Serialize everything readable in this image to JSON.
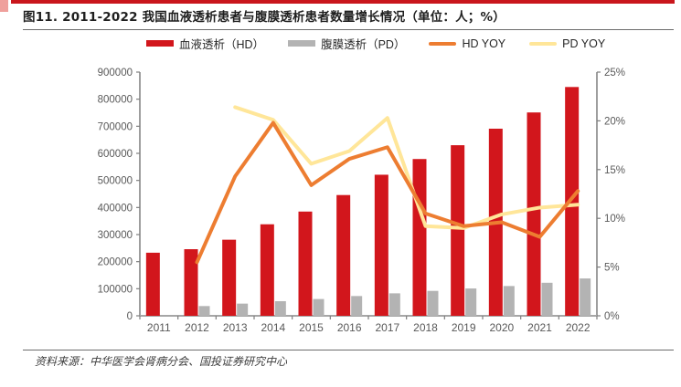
{
  "header": {
    "title": "图11. 2011-2022 我国血液透析患者与腹膜透析患者数量增长情况（单位：人；%）"
  },
  "footer": {
    "source": "资料来源：中华医学会肾病分会、国投证券研究中心"
  },
  "colors": {
    "hd_bar": "#d2161c",
    "pd_bar": "#b3b3b3",
    "hd_yoy_line": "#ed7d31",
    "pd_yoy_line": "#ffe699",
    "axis": "#7f7f7f",
    "tick_text": "#595959",
    "accent_red": "#c9161c"
  },
  "legend": {
    "items": [
      {
        "label": "血液透析（HD）",
        "type": "bar",
        "color": "#d2161c"
      },
      {
        "label": "腹膜透析（PD）",
        "type": "bar",
        "color": "#b3b3b3"
      },
      {
        "label": "HD YOY",
        "type": "line",
        "color": "#ed7d31"
      },
      {
        "label": "PD YOY",
        "type": "line",
        "color": "#ffe699"
      }
    ]
  },
  "chart_data": {
    "type": "bar",
    "title": "图11. 2011-2022 我国血液透析患者与腹膜透析患者数量增长情况（单位：人；%）",
    "categories": [
      "2011",
      "2012",
      "2013",
      "2014",
      "2015",
      "2016",
      "2017",
      "2018",
      "2019",
      "2020",
      "2021",
      "2022"
    ],
    "series": [
      {
        "name": "血液透析（HD）",
        "type": "bar",
        "axis": "left",
        "color": "#d2161c",
        "values": [
          233000,
          246000,
          281000,
          338000,
          385000,
          446000,
          521000,
          579000,
          630000,
          691000,
          751000,
          845000
        ]
      },
      {
        "name": "腹膜透析（PD）",
        "type": "bar",
        "axis": "left",
        "color": "#b3b3b3",
        "values": [
          null,
          36000,
          45000,
          54000,
          62000,
          73000,
          83000,
          92000,
          101000,
          110000,
          122000,
          138000
        ]
      },
      {
        "name": "HD YOY",
        "type": "line",
        "axis": "right",
        "color": "#ed7d31",
        "values": [
          null,
          5.5,
          14.3,
          19.8,
          13.4,
          16.1,
          17.3,
          10.5,
          9.2,
          9.6,
          8.1,
          12.8
        ]
      },
      {
        "name": "PD YOY",
        "type": "line",
        "axis": "right",
        "color": "#ffe699",
        "values": [
          null,
          null,
          21.4,
          20.1,
          15.6,
          16.9,
          20.3,
          9.2,
          9.0,
          10.4,
          11.1,
          11.4
        ]
      }
    ],
    "left_axis": {
      "min": 0,
      "max": 900000,
      "tick_step": 100000,
      "tick_labels": [
        "0",
        "100000",
        "200000",
        "300000",
        "400000",
        "500000",
        "600000",
        "700000",
        "800000",
        "900000"
      ]
    },
    "right_axis": {
      "min": 0,
      "max": 25,
      "tick_step": 5,
      "tick_labels": [
        "0%",
        "5%",
        "10%",
        "15%",
        "20%",
        "25%"
      ]
    },
    "grid": false,
    "legend_position": "top",
    "xlabel": "",
    "ylabel_left": "人",
    "ylabel_right": "%"
  }
}
